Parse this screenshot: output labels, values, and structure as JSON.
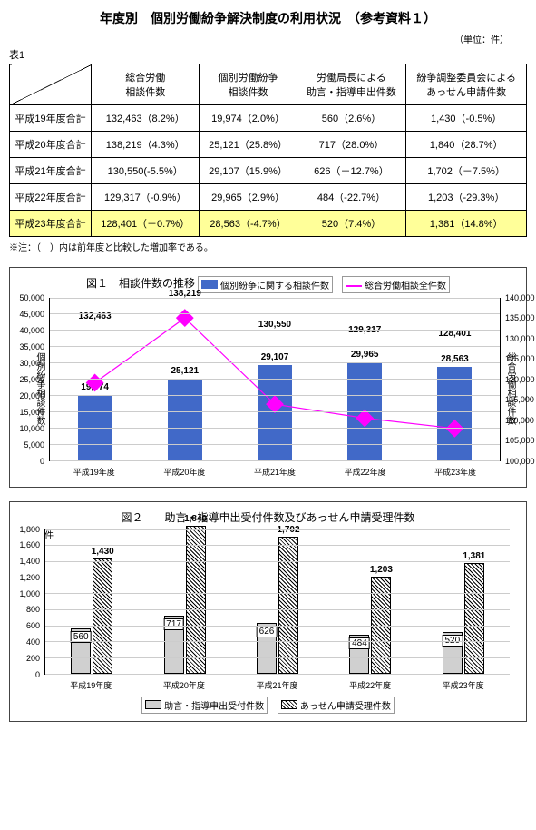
{
  "title": "年度別　個別労働紛争解決制度の利用状況　（参考資料１）",
  "unit": "（単位：件）",
  "table_label": "表1",
  "table": {
    "headers": [
      "総合労働\n相談件数",
      "個別労働紛争\n相談件数",
      "労働局長による\n助言・指導申出件数",
      "紛争調整委員会による\nあっせん申請件数"
    ],
    "rows": [
      {
        "label": "平成19年度合計",
        "cells": [
          "132,463（8.2%）",
          "19,974（2.0%）",
          "560（2.6%）",
          "1,430（-0.5%）"
        ]
      },
      {
        "label": "平成20年度合計",
        "cells": [
          "138,219（4.3%）",
          "25,121（25.8%）",
          "717（28.0%）",
          "1,840（28.7%）"
        ]
      },
      {
        "label": "平成21年度合計",
        "cells": [
          "130,550(-5.5%）",
          "29,107（15.9%）",
          "626（－12.7%）",
          "1,702（－7.5%）"
        ]
      },
      {
        "label": "平成22年度合計",
        "cells": [
          "129,317（-0.9%）",
          "29,965（2.9%）",
          "484（-22.7%）",
          "1,203（-29.3%）"
        ]
      },
      {
        "label": "平成23年度合計",
        "cells": [
          "128,401（－0.7%）",
          "28,563（-4.7%）",
          "520（7.4%）",
          "1,381（14.8%）"
        ],
        "hl": true
      }
    ]
  },
  "note": "※注：（　）内は前年度と比較した増加率である。",
  "chart1": {
    "title": "図１　相談件数の推移",
    "legend": [
      {
        "label": "個別紛争に関する相談件数",
        "color": "#4169c8",
        "type": "bar"
      },
      {
        "label": "総合労働相談全件数",
        "color": "#ff00ff",
        "type": "line"
      }
    ],
    "y_left": {
      "title": "個別紛争相談件数",
      "min": 0,
      "max": 50000,
      "step": 5000
    },
    "y_right": {
      "title": "総合労働相談件数",
      "min": 100000,
      "max": 140000,
      "step": 5000
    },
    "categories": [
      "平成19年度",
      "平成20年度",
      "平成21年度",
      "平成22年度",
      "平成23年度"
    ],
    "bar_values": [
      19974,
      25121,
      29107,
      29965,
      28563
    ],
    "bar_labels": [
      "19,974",
      "25,121",
      "29,107",
      "29,965",
      "28,563"
    ],
    "line_values": [
      132463,
      138219,
      130550,
      129317,
      128401
    ],
    "line_labels": [
      "132,463",
      "138,219",
      "130,550",
      "129,317",
      "128,401"
    ],
    "bar_color": "#4169c8",
    "line_color": "#ff00ff"
  },
  "chart2": {
    "title": "図２　　助言・指導申出受付件数及びあっせん申請受理件数",
    "unit": "件",
    "y": {
      "min": 0,
      "max": 1800,
      "step": 200
    },
    "categories": [
      "平成19年度",
      "平成20年度",
      "平成21年度",
      "平成22年度",
      "平成23年度"
    ],
    "series": [
      {
        "name": "助言・指導申出受付件数",
        "values": [
          560,
          717,
          626,
          484,
          520
        ],
        "labels": [
          "560",
          "717",
          "626",
          "484",
          "520"
        ],
        "style": "solid-gray"
      },
      {
        "name": "あっせん申請受理件数",
        "values": [
          1430,
          1840,
          1702,
          1203,
          1381
        ],
        "labels": [
          "1,430",
          "1,840",
          "1,702",
          "1,203",
          "1,381"
        ],
        "style": "hatch"
      }
    ],
    "legend": [
      "□助言・指導申出受付件数　■あっせん申請受理件数"
    ]
  }
}
